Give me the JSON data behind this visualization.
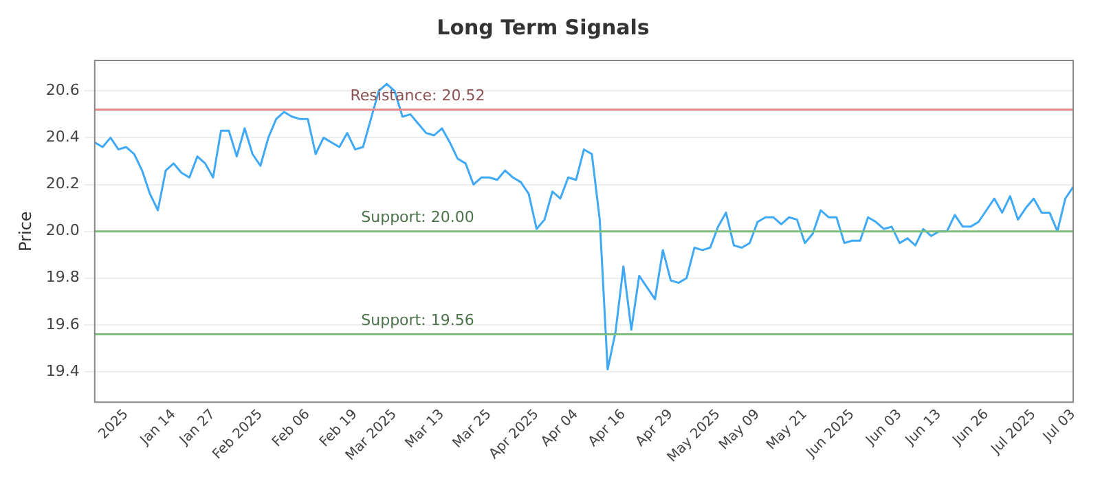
{
  "chart_data": {
    "type": "line",
    "title": "Long Term Signals",
    "ylabel": "Price",
    "categories": [
      null,
      null,
      null,
      null,
      "2025",
      null,
      null,
      null,
      null,
      null,
      "Jan 14",
      null,
      null,
      null,
      null,
      "Jan 27",
      null,
      null,
      null,
      null,
      null,
      "Feb 2025",
      null,
      null,
      null,
      null,
      null,
      "Feb 06",
      null,
      null,
      null,
      null,
      null,
      "Feb 19",
      null,
      null,
      null,
      null,
      "Mar 2025",
      null,
      null,
      null,
      null,
      null,
      "Mar 13",
      null,
      null,
      null,
      null,
      null,
      "Mar 25",
      null,
      null,
      null,
      null,
      null,
      "Apr 2025",
      null,
      null,
      null,
      null,
      "Apr 04",
      null,
      null,
      null,
      null,
      null,
      "Apr 16",
      null,
      null,
      null,
      null,
      null,
      "Apr 29",
      null,
      null,
      null,
      null,
      null,
      "May 2025",
      null,
      null,
      null,
      null,
      "May 09",
      null,
      null,
      null,
      null,
      null,
      "May 21",
      null,
      null,
      null,
      null,
      null,
      "Jun 2025",
      null,
      null,
      null,
      null,
      null,
      "Jun 03",
      null,
      null,
      null,
      null,
      "Jun 13",
      null,
      null,
      null,
      null,
      null,
      "Jun 26",
      null,
      null,
      null,
      null,
      null,
      "Jul 2025",
      null,
      null,
      null,
      null,
      "Jul 03"
    ],
    "series": [
      {
        "color": "#3fa9f5",
        "values": [
          20.38,
          20.36,
          20.4,
          20.35,
          20.36,
          20.33,
          20.26,
          20.16,
          20.09,
          20.26,
          20.29,
          20.25,
          20.23,
          20.32,
          20.29,
          20.23,
          20.43,
          20.43,
          20.32,
          20.44,
          20.33,
          20.28,
          20.4,
          20.48,
          20.51,
          20.49,
          20.48,
          20.48,
          20.33,
          20.4,
          20.38,
          20.36,
          20.42,
          20.35,
          20.36,
          20.48,
          20.6,
          20.63,
          20.6,
          20.49,
          20.5,
          20.46,
          20.42,
          20.41,
          20.44,
          20.38,
          20.31,
          20.29,
          20.2,
          20.23,
          20.23,
          20.22,
          20.26,
          20.23,
          20.21,
          20.16,
          20.01,
          20.05,
          20.17,
          20.14,
          20.23,
          20.22,
          20.35,
          20.33,
          20.05,
          19.41,
          19.57,
          19.85,
          19.58,
          19.81,
          19.76,
          19.71,
          19.92,
          19.79,
          19.78,
          19.8,
          19.93,
          19.92,
          19.93,
          20.02,
          20.08,
          19.94,
          19.93,
          19.95,
          20.04,
          20.06,
          20.06,
          20.03,
          20.06,
          20.05,
          19.95,
          19.99,
          20.09,
          20.06,
          20.06,
          19.95,
          19.96,
          19.96,
          20.06,
          20.04,
          20.01,
          20.02,
          19.95,
          19.97,
          19.94,
          20.01,
          19.98,
          20.0,
          20.0,
          20.07,
          20.02,
          20.02,
          20.04,
          20.09,
          20.14,
          20.08,
          20.15,
          20.05,
          20.1,
          20.14,
          20.08,
          20.08,
          20.0,
          20.14,
          20.19
        ]
      }
    ],
    "ylim": [
      19.27,
      20.73
    ],
    "yticks": [
      19.4,
      19.6,
      19.8,
      {
        "value": 20,
        "label": "20.0"
      },
      20.2,
      20.4,
      20.6
    ],
    "ref_lines": [
      {
        "axis": "y",
        "value": 20.52,
        "label": "Resistance: 20.52",
        "color": "#e8898a"
      },
      {
        "axis": "y",
        "value": 20.0,
        "label": "Support: 20.00",
        "color": "#7cbf7a"
      },
      {
        "axis": "y",
        "value": 19.56,
        "label": "Support: 19.56",
        "color": "#7cbf7a"
      }
    ],
    "grid": "y",
    "legend": false,
    "marker": "none",
    "line_style": "solid"
  }
}
